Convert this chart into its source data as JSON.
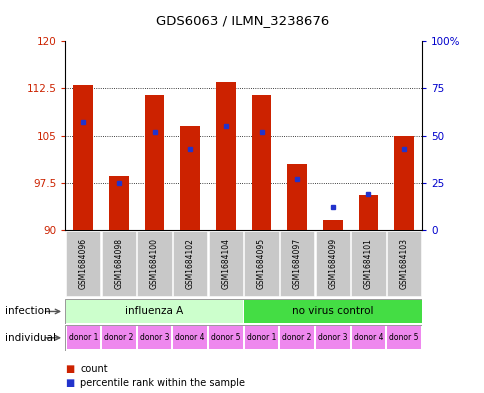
{
  "title": "GDS6063 / ILMN_3238676",
  "samples": [
    "GSM1684096",
    "GSM1684098",
    "GSM1684100",
    "GSM1684102",
    "GSM1684104",
    "GSM1684095",
    "GSM1684097",
    "GSM1684099",
    "GSM1684101",
    "GSM1684103"
  ],
  "count_values": [
    113.0,
    98.5,
    111.5,
    106.5,
    113.5,
    111.5,
    100.5,
    91.5,
    95.5,
    105.0
  ],
  "percentile_values": [
    57,
    25,
    52,
    43,
    55,
    52,
    27,
    12,
    19,
    43
  ],
  "ylim_left": [
    90,
    120
  ],
  "ylim_right": [
    0,
    100
  ],
  "yticks_left": [
    90,
    97.5,
    105,
    112.5,
    120
  ],
  "yticks_right": [
    0,
    25,
    50,
    75,
    100
  ],
  "bar_color": "#cc2200",
  "dot_color": "#2233cc",
  "infection_groups": [
    {
      "label": "influenza A",
      "start": 0,
      "end": 5,
      "color": "#ccffcc"
    },
    {
      "label": "no virus control",
      "start": 5,
      "end": 10,
      "color": "#44dd44"
    }
  ],
  "individual_labels": [
    "donor 1",
    "donor 2",
    "donor 3",
    "donor 4",
    "donor 5",
    "donor 1",
    "donor 2",
    "donor 3",
    "donor 4",
    "donor 5"
  ],
  "individual_color": "#ee88ee",
  "infection_label": "infection",
  "individual_row_label": "individual",
  "legend_count": "count",
  "legend_percentile": "percentile rank within the sample",
  "base_value": 90,
  "border_color": "#888888"
}
